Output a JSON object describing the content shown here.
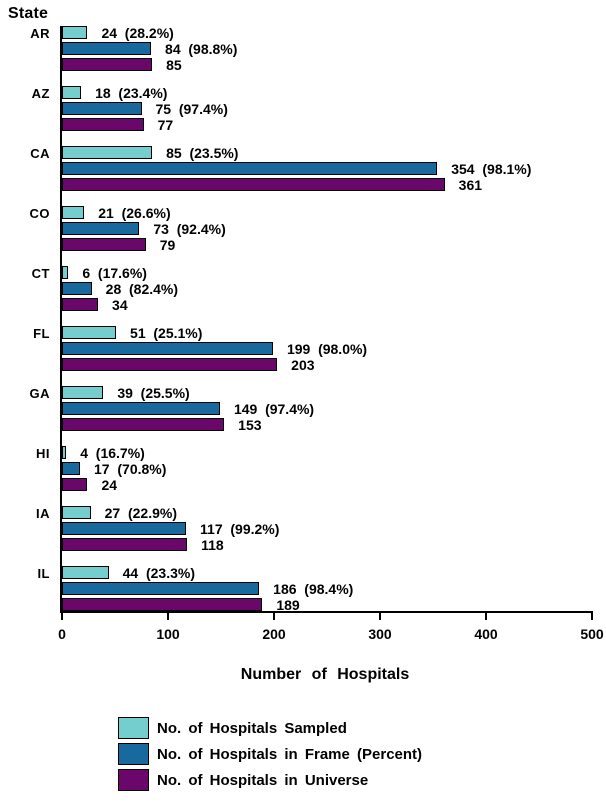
{
  "chart_data": {
    "type": "bar",
    "orientation": "horizontal",
    "y_axis_title": "State",
    "x_axis_title": "Number of Hospitals",
    "xlim": [
      0,
      500
    ],
    "x_ticks": [
      0,
      100,
      200,
      300,
      400,
      500
    ],
    "grid": false,
    "legend_position": "bottom-left",
    "series": [
      {
        "key": "sampled",
        "name": "No. of Hospitals Sampled",
        "color": "#74CECE"
      },
      {
        "key": "frame",
        "name": "No. of Hospitals in Frame (Percent)",
        "color": "#17699E"
      },
      {
        "key": "universe",
        "name": "No. of Hospitals in Universe",
        "color": "#6B076B"
      }
    ],
    "states": [
      {
        "label": "AR",
        "values": [
          24,
          84,
          85
        ],
        "pcts": [
          "28.2%",
          "98.8%",
          null
        ]
      },
      {
        "label": "AZ",
        "values": [
          18,
          75,
          77
        ],
        "pcts": [
          "23.4%",
          "97.4%",
          null
        ]
      },
      {
        "label": "CA",
        "values": [
          85,
          354,
          361
        ],
        "pcts": [
          "23.5%",
          "98.1%",
          null
        ]
      },
      {
        "label": "CO",
        "values": [
          21,
          73,
          79
        ],
        "pcts": [
          "26.6%",
          "92.4%",
          null
        ]
      },
      {
        "label": "CT",
        "values": [
          6,
          28,
          34
        ],
        "pcts": [
          "17.6%",
          "82.4%",
          null
        ]
      },
      {
        "label": "FL",
        "values": [
          51,
          199,
          203
        ],
        "pcts": [
          "25.1%",
          "98.0%",
          null
        ]
      },
      {
        "label": "GA",
        "values": [
          39,
          149,
          153
        ],
        "pcts": [
          "25.5%",
          "97.4%",
          null
        ]
      },
      {
        "label": "HI",
        "values": [
          4,
          17,
          24
        ],
        "pcts": [
          "16.7%",
          "70.8%",
          null
        ]
      },
      {
        "label": "IA",
        "values": [
          27,
          117,
          118
        ],
        "pcts": [
          "22.9%",
          "99.2%",
          null
        ]
      },
      {
        "label": "IL",
        "values": [
          44,
          186,
          189
        ],
        "pcts": [
          "23.3%",
          "98.4%",
          null
        ]
      }
    ]
  }
}
